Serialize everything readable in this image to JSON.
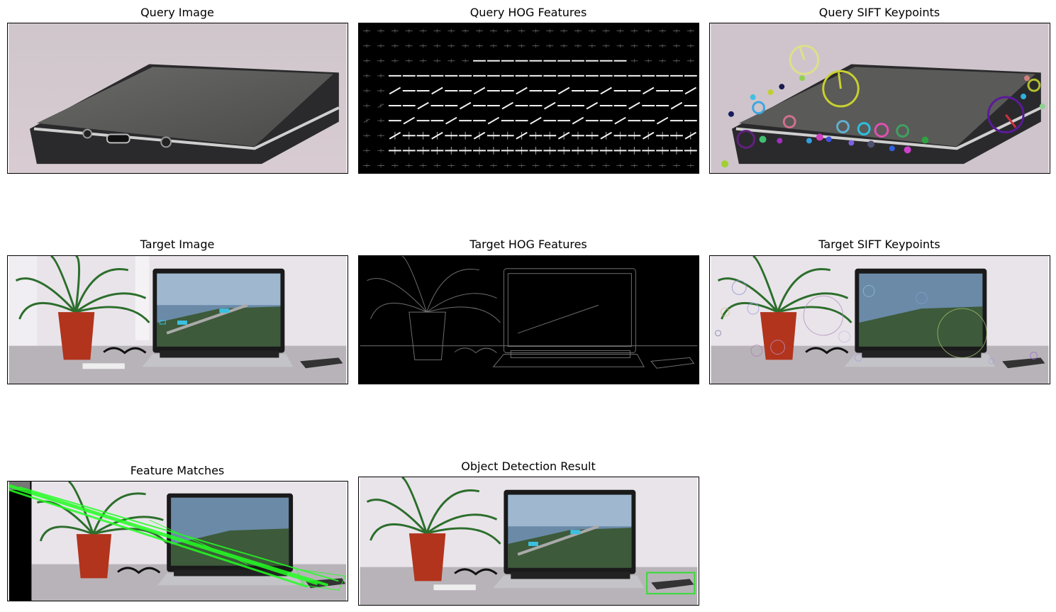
{
  "figure": {
    "panels": [
      {
        "id": "query-image",
        "title": "Query Image"
      },
      {
        "id": "query-hog",
        "title": "Query HOG Features"
      },
      {
        "id": "query-sift",
        "title": "Query SIFT Keypoints"
      },
      {
        "id": "target-image",
        "title": "Target Image"
      },
      {
        "id": "target-hog",
        "title": "Target HOG Features"
      },
      {
        "id": "target-sift",
        "title": "Target SIFT Keypoints"
      },
      {
        "id": "feature-matches",
        "title": "Feature Matches"
      },
      {
        "id": "detection-result",
        "title": "Object Detection Result"
      }
    ]
  },
  "colors": {
    "match_line": "#22ff22",
    "detection_box": "#33dd33",
    "hog_background": "#000000",
    "hog_glyph": "#ffffff"
  }
}
